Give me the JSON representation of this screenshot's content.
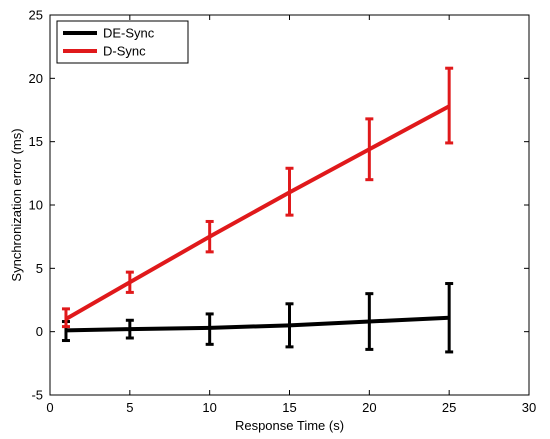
{
  "chart_data": {
    "type": "line",
    "title": "",
    "xlabel": "Response Time (s)",
    "ylabel": "Synchronization error (ms)",
    "xlim": [
      0,
      30
    ],
    "ylim": [
      -5,
      25
    ],
    "x_ticks": [
      0,
      5,
      10,
      15,
      20,
      25,
      30
    ],
    "y_ticks": [
      -5,
      0,
      5,
      10,
      15,
      20,
      25
    ],
    "grid": false,
    "legend_position": "top-left",
    "x": [
      1,
      5,
      10,
      15,
      20,
      25
    ],
    "series": [
      {
        "name": "DE-Sync",
        "color": "#000000",
        "values": [
          0.1,
          0.2,
          0.3,
          0.5,
          0.8,
          1.1
        ],
        "error_low": [
          -0.7,
          -0.5,
          -1.0,
          -1.2,
          -1.4,
          -1.6
        ],
        "error_high": [
          0.8,
          0.9,
          1.4,
          2.2,
          3.0,
          3.8
        ]
      },
      {
        "name": "D-Sync",
        "color": "#e0191b",
        "values": [
          1.0,
          3.9,
          7.5,
          11.0,
          14.4,
          17.8
        ],
        "error_low": [
          0.4,
          3.1,
          6.3,
          9.2,
          12.0,
          14.9
        ],
        "error_high": [
          1.8,
          4.7,
          8.7,
          12.9,
          16.8,
          20.8
        ]
      }
    ]
  }
}
